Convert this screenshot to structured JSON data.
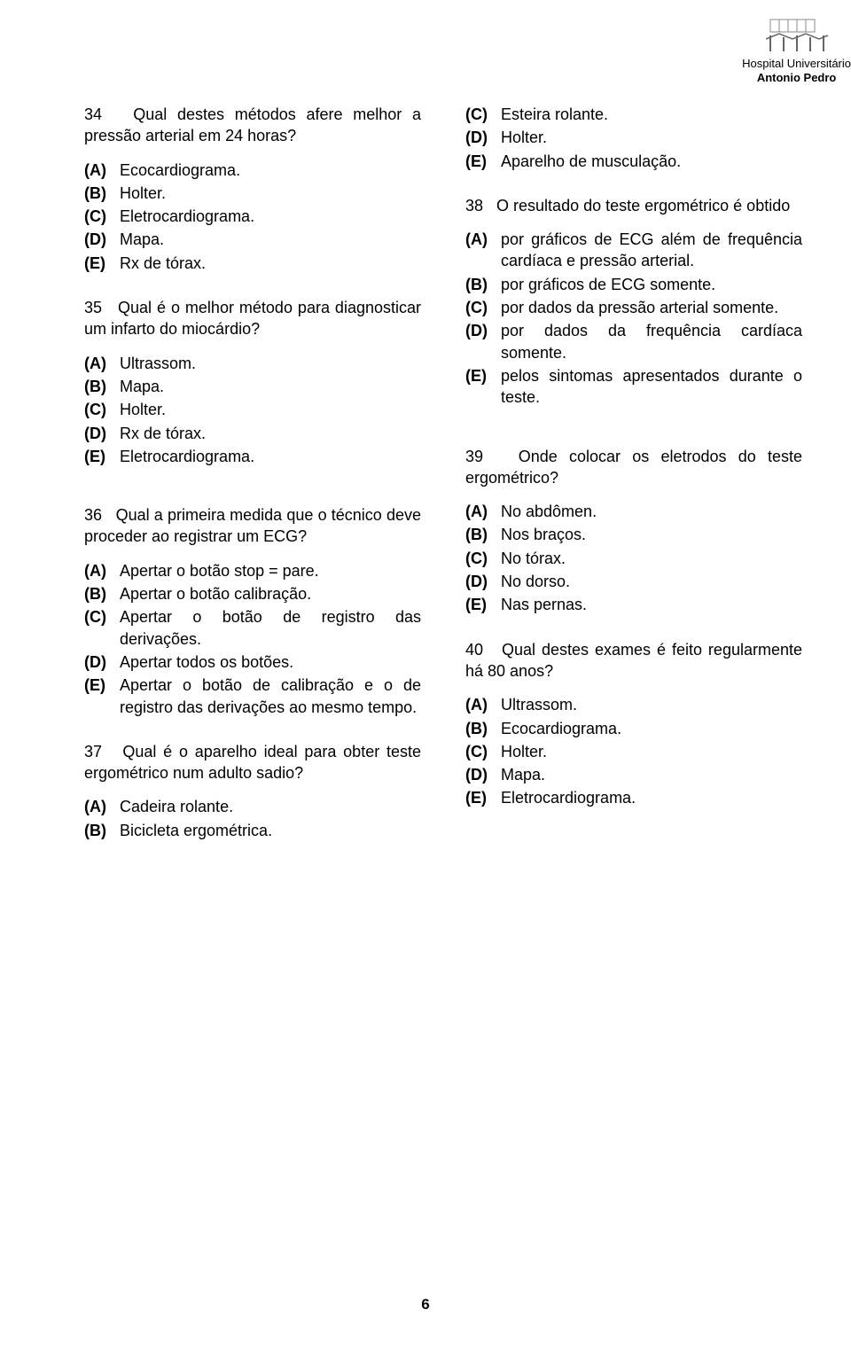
{
  "header": {
    "line1": "Hospital Universitário",
    "line2": "Antonio Pedro"
  },
  "pageNumber": "6",
  "leftColumn": [
    {
      "number": "34",
      "text": "Qual destes métodos afere melhor a pressão arterial em 24 horas?",
      "options": [
        {
          "letter": "(A)",
          "text": "Ecocardiograma."
        },
        {
          "letter": "(B)",
          "text": "Holter."
        },
        {
          "letter": "(C)",
          "text": "Eletrocardiograma."
        },
        {
          "letter": "(D)",
          "text": "Mapa."
        },
        {
          "letter": "(E)",
          "text": "Rx de tórax."
        }
      ]
    },
    {
      "number": "35",
      "text": "Qual é o melhor método para diagnosticar um infarto do miocárdio?",
      "options": [
        {
          "letter": "(A)",
          "text": "Ultrassom."
        },
        {
          "letter": "(B)",
          "text": "Mapa."
        },
        {
          "letter": "(C)",
          "text": "Holter."
        },
        {
          "letter": "(D)",
          "text": "Rx de tórax."
        },
        {
          "letter": "(E)",
          "text": "Eletrocardiograma."
        }
      ]
    },
    {
      "number": "36",
      "text": "Qual a primeira medida que o técnico deve proceder ao registrar um ECG?",
      "options": [
        {
          "letter": "(A)",
          "text": "Apertar o botão stop = pare."
        },
        {
          "letter": "(B)",
          "text": "Apertar o botão calibração."
        },
        {
          "letter": "(C)",
          "text": "Apertar o botão de registro das derivações."
        },
        {
          "letter": "(D)",
          "text": "Apertar todos os botões."
        },
        {
          "letter": "(E)",
          "text": "Apertar o botão de calibração e o de registro das derivações ao mesmo tempo."
        }
      ]
    },
    {
      "number": "37",
      "text": "Qual é o aparelho ideal para obter teste ergométrico num adulto sadio?",
      "options": [
        {
          "letter": "(A)",
          "text": "Cadeira rolante."
        },
        {
          "letter": "(B)",
          "text": "Bicicleta ergométrica."
        }
      ]
    }
  ],
  "rightColumn": [
    {
      "number": "",
      "text": "",
      "continuation": true,
      "options": [
        {
          "letter": "(C)",
          "text": "Esteira rolante."
        },
        {
          "letter": "(D)",
          "text": "Holter."
        },
        {
          "letter": "(E)",
          "text": "Aparelho de musculação."
        }
      ]
    },
    {
      "number": "38",
      "text": "O resultado do teste ergométrico é obtido",
      "options": [
        {
          "letter": "(A)",
          "text": "por gráficos de ECG além de frequência cardíaca e pressão arterial."
        },
        {
          "letter": "(B)",
          "text": "por gráficos de ECG somente."
        },
        {
          "letter": "(C)",
          "text": "por dados da pressão arterial somente."
        },
        {
          "letter": "(D)",
          "text": "por dados da frequência cardíaca somente."
        },
        {
          "letter": "(E)",
          "text": "pelos sintomas apresentados durante o teste."
        }
      ]
    },
    {
      "number": "39",
      "text": "Onde colocar os eletrodos do teste ergométrico?",
      "options": [
        {
          "letter": "(A)",
          "text": "No abdômen."
        },
        {
          "letter": "(B)",
          "text": "Nos braços."
        },
        {
          "letter": "(C)",
          "text": "No tórax."
        },
        {
          "letter": "(D)",
          "text": "No dorso."
        },
        {
          "letter": "(E)",
          "text": "Nas pernas."
        }
      ]
    },
    {
      "number": "40",
      "text": "Qual destes exames é feito regularmente há 80 anos?",
      "options": [
        {
          "letter": "(A)",
          "text": "Ultrassom."
        },
        {
          "letter": "(B)",
          "text": "Ecocardiograma."
        },
        {
          "letter": "(C)",
          "text": "Holter."
        },
        {
          "letter": "(D)",
          "text": "Mapa."
        },
        {
          "letter": "(E)",
          "text": "Eletrocardiograma."
        }
      ]
    }
  ]
}
